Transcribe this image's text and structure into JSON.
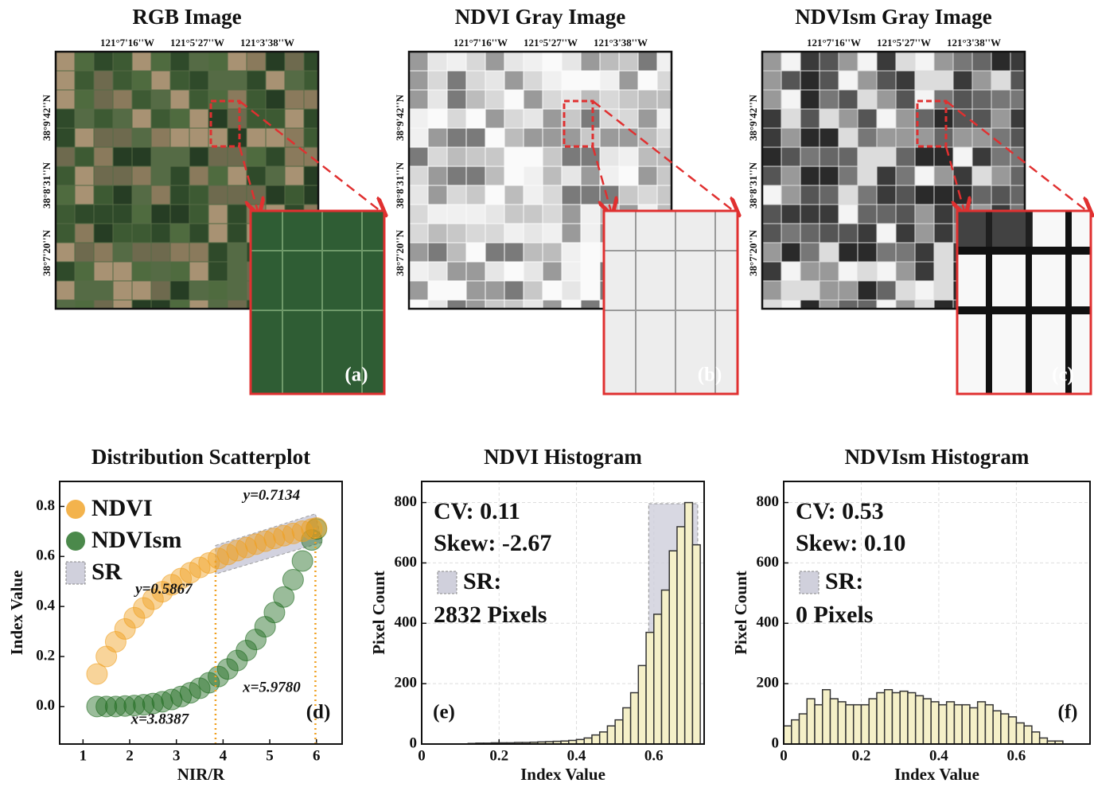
{
  "images": [
    {
      "title": "RGB Image",
      "x_labels": [
        "121°7'16''W",
        "121°5'27''W",
        "121°3'38''W"
      ],
      "y_labels": [
        "38°9'42''N",
        "38°8'31''N",
        "38°7'20''N"
      ],
      "panel": "(a)"
    },
    {
      "title": "NDVI Gray Image",
      "x_labels": [
        "121°7'16''W",
        "121°5'27''W",
        "121°3'38''W"
      ],
      "y_labels": [
        "38°9'42''N",
        "38°8'31''N",
        "38°7'20''N"
      ],
      "panel": "(b)"
    },
    {
      "title": "NDVIsm Gray Image",
      "x_labels": [
        "121°7'16''W",
        "121°5'27''W",
        "121°3'38''W"
      ],
      "y_labels": [
        "38°9'42''N",
        "38°8'31''N",
        "38°7'20''N"
      ],
      "panel": "(c)"
    }
  ],
  "chart_data": [
    {
      "type": "scatter",
      "title": "Distribution Scatterplot",
      "x_label": "NIR/R",
      "y_label": "Index Value",
      "xlim": [
        0.5,
        6.55
      ],
      "xticks": [
        1,
        2,
        3,
        4,
        5,
        6
      ],
      "ylim": [
        -0.15,
        0.9
      ],
      "yticks": [
        {
          "value": 0,
          "label": "0.0"
        },
        0.2,
        0.4,
        0.6,
        0.8
      ],
      "grid": false,
      "x": [
        1.3,
        1.5,
        1.7,
        1.9,
        2.1,
        2.3,
        2.5,
        2.7,
        2.9,
        3.1,
        3.3,
        3.5,
        3.7,
        3.9,
        4.1,
        4.3,
        4.5,
        4.7,
        4.9,
        5.1,
        5.3,
        5.5,
        5.7,
        5.9,
        6.0
      ],
      "series": [
        {
          "name": "NDVI",
          "color": "#f0a020",
          "values": [
            0.13,
            0.2,
            0.259,
            0.31,
            0.355,
            0.394,
            0.429,
            0.459,
            0.487,
            0.512,
            0.535,
            0.556,
            0.574,
            0.592,
            0.608,
            0.623,
            0.636,
            0.649,
            0.661,
            0.672,
            0.683,
            0.692,
            0.701,
            0.71,
            0.714
          ]
        },
        {
          "name": "NDVIsm",
          "color": "#1e6b1e",
          "values": [
            0,
            0,
            0,
            0.002,
            0.004,
            0.007,
            0.012,
            0.019,
            0.028,
            0.04,
            0.055,
            0.073,
            0.095,
            0.12,
            0.15,
            0.184,
            0.224,
            0.268,
            0.319,
            0.376,
            0.438,
            0.507,
            0.582,
            0.666,
            0.71
          ]
        }
      ],
      "sr_label": "SR",
      "annotations": [
        {
          "axis": "y",
          "value": 0.7134,
          "label": "y=0.7134"
        },
        {
          "axis": "y",
          "value": 0.5867,
          "label": "y=0.5867"
        },
        {
          "axis": "x",
          "value": 3.8387,
          "label": "x=3.8387"
        },
        {
          "axis": "x",
          "value": 5.978,
          "label": "x=5.9780"
        }
      ],
      "panel": "(d)"
    },
    {
      "type": "histogram",
      "title": "NDVI Histogram",
      "x_label": "Index Value",
      "y_label": "Pixel Count",
      "xlim": [
        0,
        0.73
      ],
      "xticks": [
        0,
        0.2,
        0.4,
        0.6
      ],
      "ylim": [
        0,
        870
      ],
      "yticks": [
        0,
        200,
        400,
        600,
        800
      ],
      "grid": true,
      "bins": [
        0,
        0.02,
        0.04,
        0.06,
        0.08,
        0.1,
        0.12,
        0.14,
        0.16,
        0.18,
        0.2,
        0.22,
        0.24,
        0.26,
        0.28,
        0.3,
        0.32,
        0.34,
        0.36,
        0.38,
        0.4,
        0.42,
        0.44,
        0.46,
        0.48,
        0.5,
        0.52,
        0.54,
        0.56,
        0.58,
        0.6,
        0.62,
        0.64,
        0.66,
        0.68,
        0.7,
        0.72
      ],
      "counts": [
        0,
        0,
        0,
        0,
        0,
        0,
        2,
        3,
        3,
        4,
        4,
        4,
        5,
        5,
        6,
        7,
        8,
        9,
        10,
        12,
        15,
        20,
        30,
        40,
        60,
        80,
        120,
        170,
        260,
        370,
        430,
        510,
        640,
        720,
        800,
        660
      ],
      "color": "#f5f0c8",
      "stats": [
        "CV: 0.11",
        "Skew: -2.67"
      ],
      "sr_label": "SR:",
      "sr_pixels": "2832 Pixels",
      "sr_range": [
        0.5867,
        0.7134
      ],
      "panel": "(e)"
    },
    {
      "type": "histogram",
      "title": "NDVIsm Histogram",
      "x_label": "Index Value",
      "y_label": "Pixel Count",
      "xlim": [
        0,
        0.79
      ],
      "xticks": [
        0,
        0.2,
        0.4,
        0.6
      ],
      "ylim": [
        0,
        870
      ],
      "yticks": [
        0,
        200,
        400,
        600,
        800
      ],
      "grid": true,
      "bins": [
        0,
        0.02,
        0.04,
        0.06,
        0.08,
        0.1,
        0.12,
        0.14,
        0.16,
        0.18,
        0.2,
        0.22,
        0.24,
        0.26,
        0.28,
        0.3,
        0.32,
        0.34,
        0.36,
        0.38,
        0.4,
        0.42,
        0.44,
        0.46,
        0.48,
        0.5,
        0.52,
        0.54,
        0.56,
        0.58,
        0.6,
        0.62,
        0.64,
        0.66,
        0.68,
        0.7,
        0.72
      ],
      "counts": [
        60,
        80,
        100,
        150,
        130,
        180,
        150,
        140,
        130,
        130,
        130,
        150,
        170,
        180,
        170,
        175,
        170,
        160,
        150,
        140,
        130,
        140,
        130,
        130,
        120,
        140,
        130,
        110,
        100,
        90,
        70,
        60,
        40,
        20,
        10,
        10
      ],
      "color": "#f5f0c8",
      "stats": [
        "CV: 0.53",
        "Skew: 0.10"
      ],
      "sr_label": "SR:",
      "sr_pixels": "0 Pixels",
      "panel": "(f)"
    }
  ]
}
